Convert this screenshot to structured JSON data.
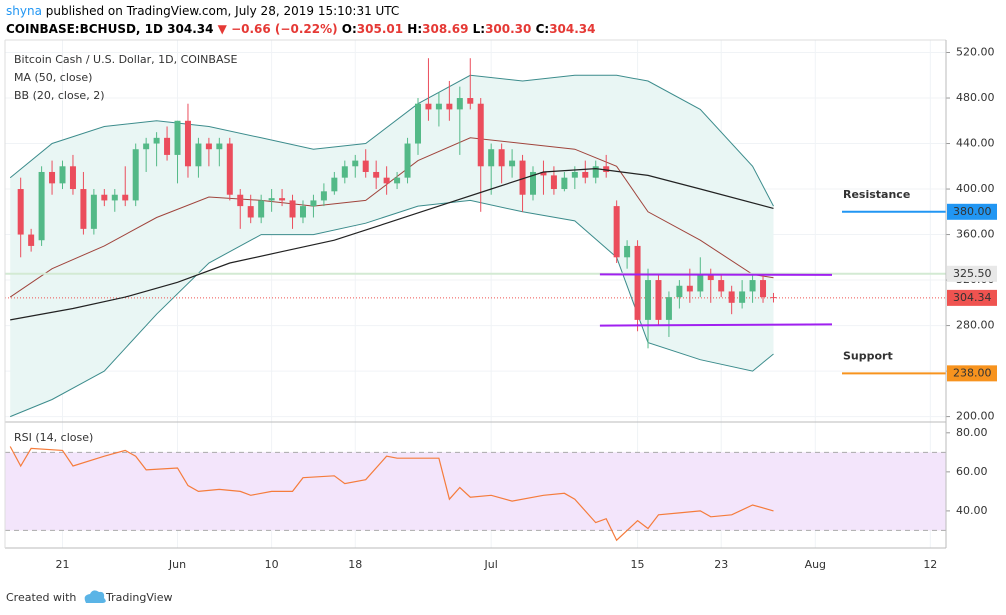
{
  "header": {
    "author": "shyna",
    "published": "published on TradingView.com, July 28, 2019 15:10:31 UTC",
    "symbol": "COINBASE:BCHUSD, 1D",
    "last": "304.34",
    "arrow": "▼",
    "change": "−0.66 (−0.22%)",
    "ohlc": [
      {
        "key": "O:",
        "value": "305.01"
      },
      {
        "key": "H:",
        "value": "308.69"
      },
      {
        "key": "L:",
        "value": "300.30"
      },
      {
        "key": "C:",
        "value": "304.34"
      }
    ]
  },
  "chart_data": {
    "type": "candlestick",
    "title": "Bitcoin Cash / U.S. Dollar, 1D, COINBASE",
    "up_color": "#53b987",
    "down_color": "#eb4d5c",
    "xlim": [
      -1.5,
      88.5
    ],
    "xticks": [
      {
        "value": 4,
        "label": "21"
      },
      {
        "value": 15,
        "label": "Jun"
      },
      {
        "value": 24,
        "label": "10"
      },
      {
        "value": 32,
        "label": "18"
      },
      {
        "value": 45,
        "label": "Jul"
      },
      {
        "value": 59,
        "label": "15"
      },
      {
        "value": 67,
        "label": "23"
      },
      {
        "value": 76,
        "label": "Aug"
      },
      {
        "value": 87,
        "label": "12"
      }
    ],
    "ylim": [
      197,
      531
    ],
    "yticks": [
      {
        "value": 200,
        "label": "200.00"
      },
      {
        "value": 240,
        "label": "240.00"
      },
      {
        "value": 280,
        "label": "280.00"
      },
      {
        "value": 320,
        "label": "320.00"
      },
      {
        "value": 360,
        "label": "360.00"
      },
      {
        "value": 400,
        "label": "400.00"
      },
      {
        "value": 440,
        "label": "440.00"
      },
      {
        "value": 480,
        "label": "480.00"
      },
      {
        "value": 520,
        "label": "520.00"
      }
    ],
    "ohlc": [
      [
        400,
        410,
        340,
        360
      ],
      [
        360,
        365,
        345,
        350
      ],
      [
        355,
        420,
        350,
        415
      ],
      [
        415,
        425,
        395,
        405
      ],
      [
        405,
        425,
        400,
        420
      ],
      [
        420,
        430,
        395,
        400
      ],
      [
        400,
        415,
        360,
        365
      ],
      [
        365,
        400,
        360,
        395
      ],
      [
        395,
        400,
        385,
        390
      ],
      [
        390,
        400,
        380,
        395
      ],
      [
        395,
        420,
        385,
        390
      ],
      [
        390,
        440,
        385,
        435
      ],
      [
        435,
        445,
        415,
        440
      ],
      [
        440,
        450,
        420,
        445
      ],
      [
        445,
        455,
        425,
        430
      ],
      [
        430,
        460,
        405,
        460
      ],
      [
        460,
        475,
        410,
        420
      ],
      [
        420,
        445,
        410,
        440
      ],
      [
        440,
        445,
        420,
        435
      ],
      [
        435,
        445,
        420,
        440
      ],
      [
        440,
        445,
        390,
        395
      ],
      [
        395,
        400,
        365,
        385
      ],
      [
        385,
        395,
        370,
        375
      ],
      [
        375,
        395,
        370,
        390
      ],
      [
        390,
        400,
        380,
        392
      ],
      [
        392,
        400,
        385,
        390
      ],
      [
        390,
        395,
        365,
        375
      ],
      [
        375,
        390,
        370,
        385
      ],
      [
        385,
        395,
        375,
        390
      ],
      [
        390,
        405,
        385,
        398
      ],
      [
        398,
        415,
        395,
        410
      ],
      [
        410,
        425,
        405,
        420
      ],
      [
        420,
        430,
        410,
        425
      ],
      [
        425,
        435,
        410,
        415
      ],
      [
        415,
        425,
        400,
        410
      ],
      [
        410,
        420,
        395,
        405
      ],
      [
        405,
        415,
        400,
        410
      ],
      [
        410,
        445,
        405,
        440
      ],
      [
        440,
        480,
        430,
        475
      ],
      [
        475,
        515,
        460,
        470
      ],
      [
        470,
        485,
        455,
        475
      ],
      [
        475,
        495,
        460,
        470
      ],
      [
        470,
        490,
        430,
        480
      ],
      [
        480,
        515,
        470,
        475
      ],
      [
        475,
        480,
        380,
        420
      ],
      [
        420,
        440,
        395,
        435
      ],
      [
        435,
        440,
        405,
        420
      ],
      [
        420,
        435,
        410,
        425
      ],
      [
        425,
        430,
        380,
        395
      ],
      [
        395,
        420,
        390,
        415
      ],
      [
        415,
        425,
        395,
        412
      ],
      [
        412,
        420,
        395,
        400
      ],
      [
        400,
        415,
        398,
        410
      ],
      [
        410,
        420,
        400,
        415
      ],
      [
        415,
        425,
        405,
        410
      ],
      [
        410,
        425,
        405,
        420
      ],
      [
        420,
        430,
        410,
        415
      ],
      [
        385,
        390,
        335,
        340
      ],
      [
        340,
        355,
        330,
        350
      ],
      [
        350,
        355,
        275,
        285
      ],
      [
        285,
        330,
        260,
        320
      ],
      [
        320,
        325,
        280,
        285
      ],
      [
        285,
        310,
        270,
        305
      ],
      [
        305,
        320,
        295,
        315
      ],
      [
        315,
        330,
        300,
        310
      ],
      [
        310,
        340,
        305,
        325
      ],
      [
        325,
        330,
        300,
        320
      ],
      [
        320,
        325,
        305,
        310
      ],
      [
        310,
        315,
        290,
        300
      ],
      [
        300,
        320,
        295,
        310
      ],
      [
        310,
        325,
        300,
        320
      ],
      [
        320,
        325,
        300,
        305
      ],
      [
        305.01,
        308.69,
        300.3,
        304.34
      ]
    ],
    "series": [
      {
        "name": "MA (50, close)",
        "color": "#222222",
        "x": [
          -1,
          5,
          10,
          15,
          20,
          25,
          30,
          35,
          40,
          45,
          50,
          55,
          60,
          65,
          72
        ],
        "values": [
          285,
          295,
          305,
          318,
          335,
          345,
          355,
          370,
          385,
          400,
          415,
          418,
          412,
          400,
          383
        ]
      },
      {
        "name": "BB (20, close, 2)",
        "color": "#3c8c8c",
        "x": [
          -1,
          3,
          8,
          13,
          18,
          23,
          28,
          33,
          38,
          43,
          48,
          53,
          57,
          60,
          65,
          70,
          72
        ],
        "values": [
          410,
          440,
          455,
          460,
          455,
          445,
          435,
          440,
          475,
          500,
          495,
          500,
          500,
          495,
          470,
          420,
          385
        ],
        "lower": [
          200,
          215,
          240,
          290,
          335,
          360,
          360,
          370,
          385,
          390,
          380,
          372,
          340,
          265,
          250,
          240,
          255
        ],
        "basis": [
          305,
          330,
          350,
          375,
          393,
          390,
          385,
          390,
          425,
          445,
          440,
          435,
          420,
          380,
          355,
          325,
          322
        ],
        "basis_color": "#a0443c",
        "fill": "#e9f6f4"
      }
    ],
    "price_line": {
      "value": 304.34,
      "label": "304.34",
      "color": "#ef5350"
    },
    "marker_line": {
      "value": 325.5,
      "label": "325.50",
      "color": "#d3ead3"
    },
    "trendlines": [
      {
        "color": "#a020f0",
        "x": [
          55.4,
          77.6
        ],
        "values": [
          325,
          324.5
        ]
      },
      {
        "color": "#a020f0",
        "x": [
          55.4,
          77.6
        ],
        "values": [
          280,
          281
        ]
      }
    ],
    "levels": [
      {
        "text": "Resistance",
        "text_color": "#f7931e",
        "value": 380,
        "label": "380.00",
        "color": "#2196f3"
      },
      {
        "text": "Support",
        "text_color": "#2196f3",
        "value": 238,
        "label": "238.00",
        "color": "#f7931e"
      }
    ],
    "rsi": {
      "name": "RSI (14, close)",
      "color": "#f57c3c",
      "band_fill": "#f3e5fb",
      "band": [
        30,
        70
      ],
      "ylim": [
        21,
        84
      ],
      "yticks": [
        {
          "value": 40,
          "label": "40.00"
        },
        {
          "value": 60,
          "label": "60.00"
        },
        {
          "value": 80,
          "label": "80.00"
        }
      ],
      "x": [
        -1,
        0,
        1,
        4,
        5,
        8,
        10,
        11,
        12,
        15,
        16,
        17,
        19,
        21,
        22,
        24,
        26,
        27,
        30,
        31,
        33,
        35,
        36,
        40,
        41,
        42,
        43,
        45,
        47,
        50,
        52,
        53,
        55,
        56,
        57,
        59,
        60,
        61,
        63,
        65,
        66,
        68,
        70,
        72
      ],
      "values": [
        73,
        63,
        72,
        71,
        63,
        68,
        71,
        68,
        61,
        62,
        53,
        50,
        51,
        50,
        48,
        50,
        50,
        57,
        58,
        54,
        56,
        68,
        67,
        67,
        46,
        52,
        47,
        48,
        45,
        48,
        49,
        46,
        34,
        36,
        25,
        35,
        31,
        38,
        39,
        40,
        37,
        38,
        43,
        40
      ]
    }
  },
  "footer": {
    "created": "Created with",
    "brand": "TradingView"
  }
}
